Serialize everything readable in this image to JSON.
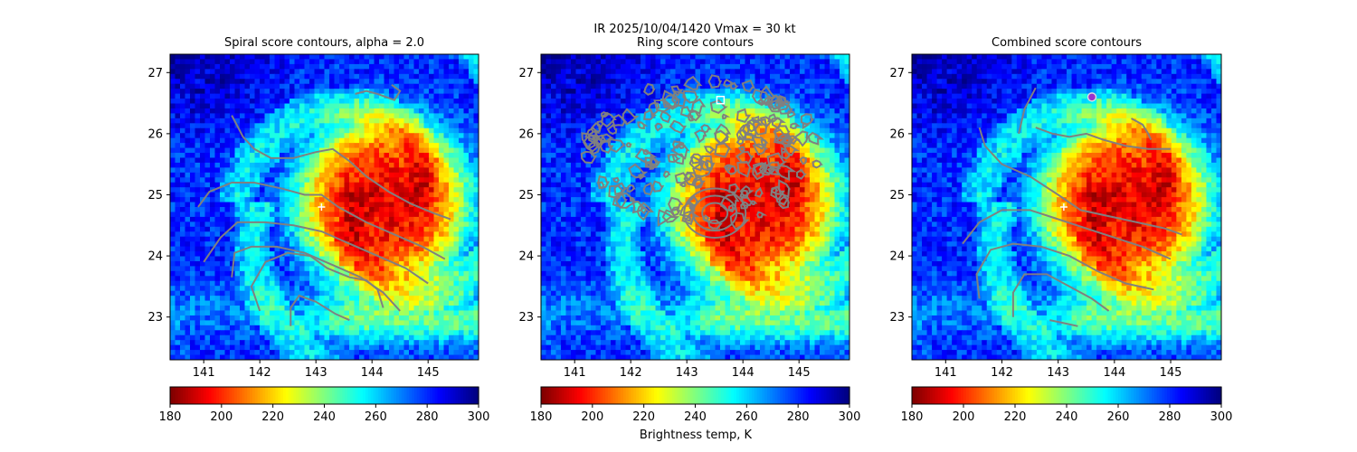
{
  "figure": {
    "suptitle_line1": "IR  2025/10/04/1420    Vmax = 30 kt",
    "colorbar_label": "Brightness temp, K"
  },
  "colors": {
    "contour": "#808080",
    "center_marker": "#ffffff",
    "ring_marker": "#ffffff",
    "combined_marker": "#9933cc"
  },
  "colormap": "jet_r",
  "chart_data": [
    {
      "type": "heatmap",
      "title": "Spiral score contours, alpha =  2.0",
      "x_ticks": [
        141,
        142,
        143,
        144,
        145
      ],
      "y_ticks": [
        23,
        24,
        25,
        26,
        27
      ],
      "xlim": [
        140.4,
        145.9
      ],
      "ylim": [
        22.3,
        27.3
      ],
      "center_marker": {
        "lon": 143.1,
        "lat": 24.8,
        "symbol": "+"
      },
      "colorbar": {
        "range": [
          180,
          300
        ],
        "ticks": [
          180,
          200,
          220,
          240,
          260,
          280,
          300
        ]
      },
      "contours": [
        [
          [
            143.7,
            26.65
          ],
          [
            143.9,
            26.7
          ],
          [
            144.1,
            26.65
          ],
          [
            144.25,
            26.6
          ],
          [
            144.4,
            26.55
          ],
          [
            144.5,
            26.7
          ],
          [
            144.35,
            26.8
          ]
        ],
        [
          [
            141.5,
            26.3
          ],
          [
            141.7,
            25.95
          ],
          [
            141.9,
            25.75
          ],
          [
            142.2,
            25.6
          ],
          [
            142.6,
            25.6
          ],
          [
            143.0,
            25.7
          ],
          [
            143.3,
            25.75
          ],
          [
            143.6,
            25.55
          ],
          [
            143.9,
            25.3
          ],
          [
            144.3,
            25.05
          ],
          [
            144.7,
            24.85
          ],
          [
            145.1,
            24.7
          ],
          [
            145.4,
            24.6
          ]
        ],
        [
          [
            140.9,
            24.8
          ],
          [
            141.1,
            25.05
          ],
          [
            141.5,
            25.2
          ],
          [
            141.9,
            25.2
          ],
          [
            142.4,
            25.1
          ],
          [
            142.8,
            25.0
          ],
          [
            143.1,
            25.0
          ],
          [
            143.4,
            24.8
          ],
          [
            143.9,
            24.55
          ],
          [
            144.4,
            24.35
          ],
          [
            144.9,
            24.15
          ],
          [
            145.3,
            23.95
          ]
        ],
        [
          [
            141.0,
            23.9
          ],
          [
            141.3,
            24.3
          ],
          [
            141.6,
            24.55
          ],
          [
            142.1,
            24.55
          ],
          [
            142.6,
            24.5
          ],
          [
            143.1,
            24.4
          ],
          [
            143.6,
            24.2
          ],
          [
            144.1,
            24.0
          ],
          [
            144.6,
            23.8
          ],
          [
            145.0,
            23.55
          ]
        ],
        [
          [
            141.5,
            23.65
          ],
          [
            141.55,
            24.05
          ],
          [
            141.85,
            24.15
          ],
          [
            142.3,
            24.15
          ],
          [
            142.8,
            24.05
          ],
          [
            143.3,
            23.85
          ],
          [
            143.8,
            23.65
          ],
          [
            144.2,
            23.4
          ],
          [
            144.5,
            23.1
          ]
        ],
        [
          [
            142.0,
            23.1
          ],
          [
            141.85,
            23.5
          ],
          [
            142.1,
            23.9
          ],
          [
            142.5,
            24.05
          ],
          [
            142.9,
            24.0
          ],
          [
            143.2,
            23.8
          ],
          [
            143.6,
            23.65
          ],
          [
            143.9,
            23.6
          ],
          [
            144.1,
            23.45
          ],
          [
            144.2,
            23.15
          ]
        ],
        [
          [
            142.55,
            22.85
          ],
          [
            142.55,
            23.15
          ],
          [
            142.7,
            23.35
          ],
          [
            143.0,
            23.25
          ],
          [
            143.35,
            23.05
          ],
          [
            143.6,
            22.95
          ]
        ]
      ]
    },
    {
      "type": "heatmap",
      "title": "Ring score contours",
      "x_ticks": [
        141,
        142,
        143,
        144,
        145
      ],
      "y_ticks": [
        23,
        24,
        25,
        26,
        27
      ],
      "xlim": [
        140.4,
        145.9
      ],
      "ylim": [
        22.3,
        27.3
      ],
      "ring_marker": {
        "lon": 143.6,
        "lat": 26.55,
        "symbol": "square"
      },
      "colorbar": {
        "range": [
          180,
          300
        ],
        "ticks": [
          180,
          200,
          220,
          240,
          260,
          280,
          300
        ]
      },
      "contour_region": {
        "lon_range": [
          141.2,
          145.4
        ],
        "lat_range": [
          24.5,
          26.9
        ]
      }
    },
    {
      "type": "heatmap",
      "title": "Combined score contours",
      "x_ticks": [
        141,
        142,
        143,
        144,
        145
      ],
      "y_ticks": [
        23,
        24,
        25,
        26,
        27
      ],
      "xlim": [
        140.4,
        145.9
      ],
      "ylim": [
        22.3,
        27.3
      ],
      "center_marker": {
        "lon": 143.1,
        "lat": 24.8,
        "symbol": "+"
      },
      "combined_marker": {
        "lon": 143.6,
        "lat": 26.6,
        "symbol": "circle"
      },
      "colorbar": {
        "range": [
          180,
          300
        ],
        "ticks": [
          180,
          200,
          220,
          240,
          260,
          280,
          300
        ]
      },
      "contours": [
        [
          [
            142.3,
            26.0
          ],
          [
            142.4,
            26.4
          ],
          [
            142.6,
            26.75
          ]
        ],
        [
          [
            142.6,
            26.1
          ],
          [
            142.9,
            26.0
          ],
          [
            143.2,
            25.95
          ],
          [
            143.5,
            26.0
          ],
          [
            143.8,
            25.9
          ],
          [
            144.2,
            25.8
          ],
          [
            144.6,
            25.75
          ],
          [
            145.0,
            25.75
          ]
        ],
        [
          [
            144.3,
            26.25
          ],
          [
            144.5,
            26.15
          ],
          [
            144.6,
            26.0
          ],
          [
            144.65,
            25.9
          ]
        ],
        [
          [
            141.6,
            26.1
          ],
          [
            141.7,
            25.8
          ],
          [
            142.0,
            25.5
          ],
          [
            142.5,
            25.3
          ],
          [
            143.0,
            25.0
          ],
          [
            143.4,
            24.75
          ],
          [
            143.9,
            24.65
          ],
          [
            144.4,
            24.55
          ],
          [
            144.9,
            24.45
          ],
          [
            145.2,
            24.35
          ]
        ],
        [
          [
            141.3,
            24.2
          ],
          [
            141.6,
            24.55
          ],
          [
            142.0,
            24.75
          ],
          [
            142.5,
            24.75
          ],
          [
            143.0,
            24.6
          ],
          [
            143.5,
            24.45
          ],
          [
            144.0,
            24.3
          ],
          [
            144.5,
            24.15
          ],
          [
            145.0,
            23.95
          ]
        ],
        [
          [
            141.6,
            23.3
          ],
          [
            141.55,
            23.7
          ],
          [
            141.8,
            24.1
          ],
          [
            142.2,
            24.2
          ],
          [
            142.7,
            24.15
          ],
          [
            143.2,
            24.0
          ],
          [
            143.7,
            23.75
          ],
          [
            144.2,
            23.55
          ],
          [
            144.7,
            23.45
          ]
        ],
        [
          [
            142.2,
            23.0
          ],
          [
            142.2,
            23.4
          ],
          [
            142.4,
            23.7
          ],
          [
            142.8,
            23.7
          ],
          [
            143.2,
            23.5
          ],
          [
            143.6,
            23.3
          ],
          [
            143.9,
            23.1
          ]
        ],
        [
          [
            142.85,
            22.95
          ],
          [
            143.1,
            22.9
          ],
          [
            143.35,
            22.85
          ]
        ]
      ]
    }
  ]
}
